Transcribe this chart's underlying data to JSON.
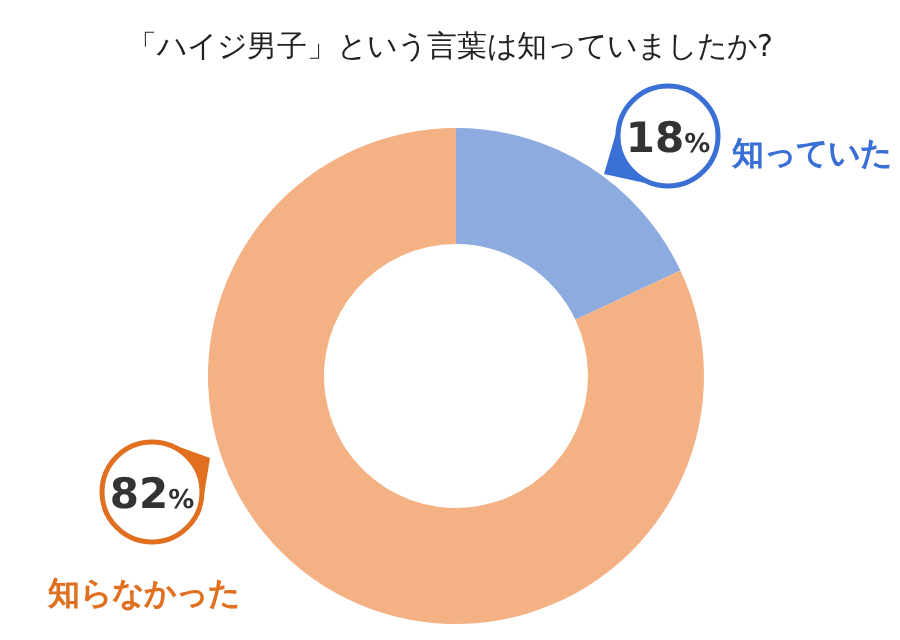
{
  "chart_data": {
    "type": "donut",
    "title": "「ハイジ男子」という言葉は知っていましたか?",
    "categories": [
      "知っていた",
      "知らなかった"
    ],
    "values": [
      18,
      82
    ],
    "colors": [
      "#8eabdf",
      "#f3b184"
    ],
    "value_labels": [
      "18%",
      "82%"
    ]
  }
}
